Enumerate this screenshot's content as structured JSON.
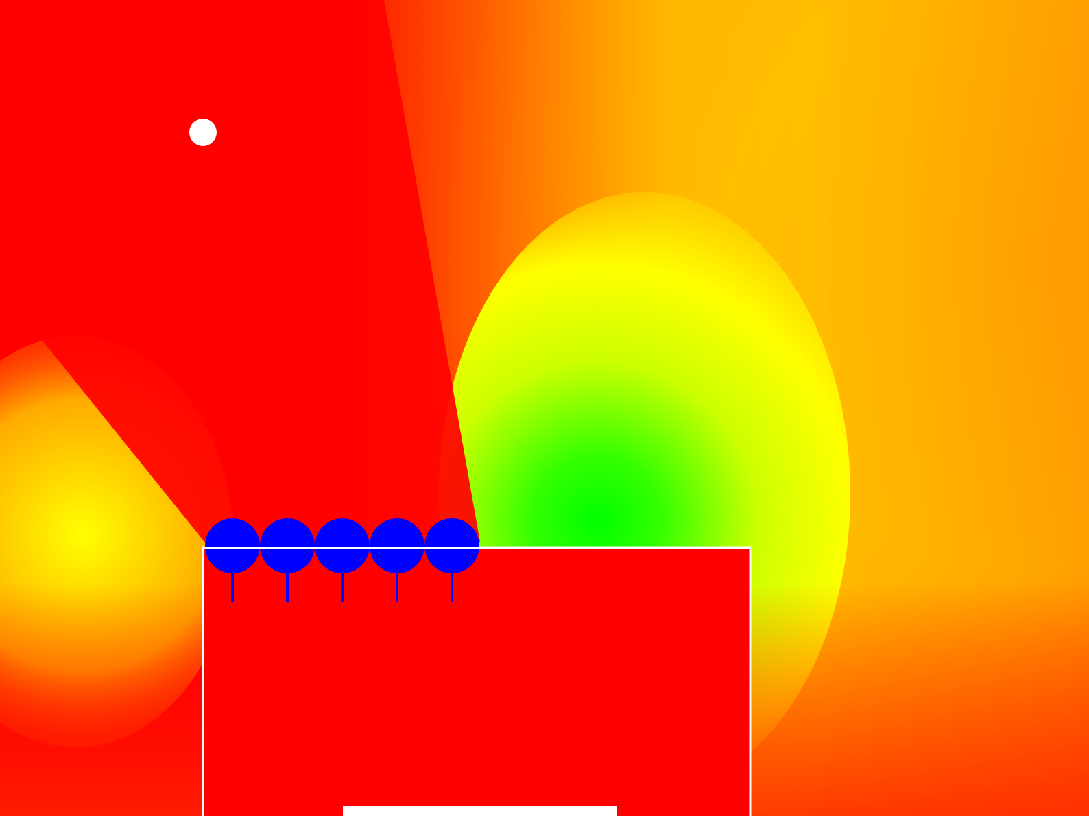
{
  "scene": {
    "description_visible_text": "",
    "elements": {
      "field_map": {
        "icon": "heatmap-field",
        "colors": [
          "#ff0000",
          "#ff8c00",
          "#ffff00",
          "#00ff00"
        ]
      },
      "white_dot": {
        "icon": "white-dot",
        "color": "#ffffff"
      },
      "transducer_array": {
        "icon": "blue-circle-array",
        "count": 5,
        "color": "#0000ff"
      },
      "red_block": {
        "icon": "red-rectangle",
        "fill": "#ff0000",
        "stroke": "#ffffff"
      },
      "bottom_bar": {
        "icon": "white-bar",
        "color": "#ffffff"
      }
    }
  }
}
